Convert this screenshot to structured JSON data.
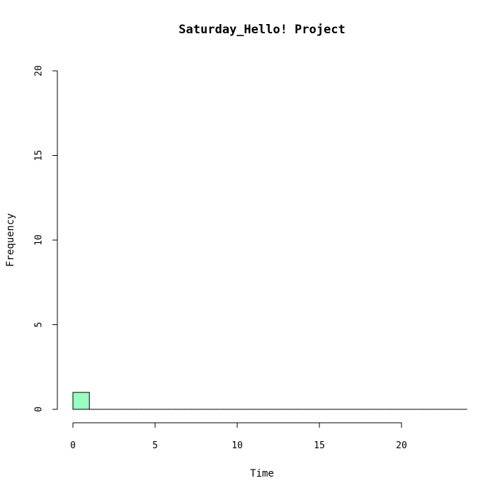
{
  "chart_data": {
    "type": "bar",
    "title": "Saturday_Hello! Project",
    "xlabel": "Time",
    "ylabel": "Frequency",
    "xlim": [
      0,
      24
    ],
    "ylim": [
      0,
      20
    ],
    "x_ticks": [
      0,
      5,
      10,
      15,
      20
    ],
    "y_ticks": [
      0,
      5,
      10,
      15,
      20
    ],
    "bin_width": 1,
    "bins": [
      {
        "start": 0,
        "end": 1,
        "value": 1
      },
      {
        "start": 1,
        "end": 2,
        "value": 0
      },
      {
        "start": 2,
        "end": 3,
        "value": 0
      },
      {
        "start": 3,
        "end": 4,
        "value": 0
      },
      {
        "start": 4,
        "end": 5,
        "value": 0
      },
      {
        "start": 5,
        "end": 6,
        "value": 0
      },
      {
        "start": 6,
        "end": 7,
        "value": 0
      },
      {
        "start": 7,
        "end": 8,
        "value": 0
      },
      {
        "start": 8,
        "end": 9,
        "value": 0
      },
      {
        "start": 9,
        "end": 10,
        "value": 0
      },
      {
        "start": 10,
        "end": 11,
        "value": 0
      },
      {
        "start": 11,
        "end": 12,
        "value": 0
      },
      {
        "start": 12,
        "end": 13,
        "value": 0
      },
      {
        "start": 13,
        "end": 14,
        "value": 0
      },
      {
        "start": 14,
        "end": 15,
        "value": 0
      },
      {
        "start": 15,
        "end": 16,
        "value": 0
      },
      {
        "start": 16,
        "end": 17,
        "value": 0
      },
      {
        "start": 17,
        "end": 18,
        "value": 0
      },
      {
        "start": 18,
        "end": 19,
        "value": 0
      },
      {
        "start": 19,
        "end": 20,
        "value": 0
      },
      {
        "start": 20,
        "end": 21,
        "value": 0
      },
      {
        "start": 21,
        "end": 22,
        "value": 0
      },
      {
        "start": 22,
        "end": 23,
        "value": 0
      },
      {
        "start": 23,
        "end": 24,
        "value": 0
      }
    ],
    "bar_color": "#98FFC0",
    "bar_stroke": "#000000",
    "grid": false,
    "legend": "none"
  }
}
